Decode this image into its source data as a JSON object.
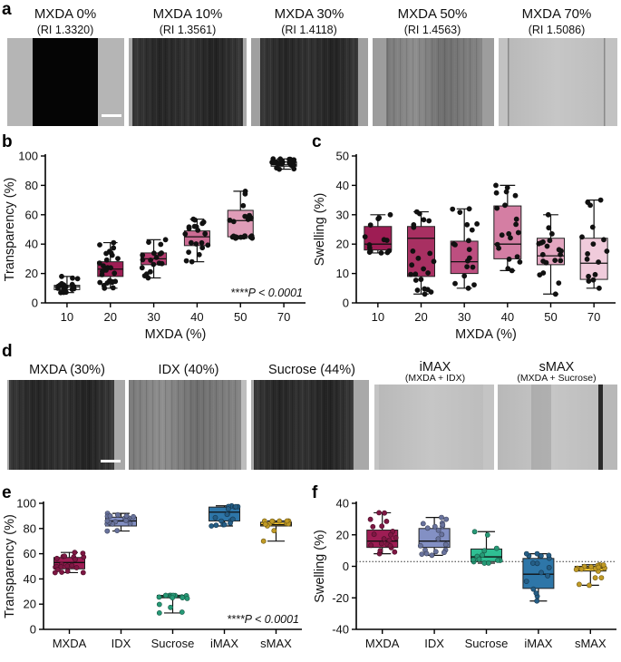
{
  "panel_letters": {
    "a": "a",
    "b": "b",
    "c": "c",
    "d": "d",
    "e": "e",
    "f": "f"
  },
  "row_a": {
    "tiles": [
      {
        "title": "MXDA 0%",
        "subtitle": "(RI 1.3320)"
      },
      {
        "title": "MXDA 10%",
        "subtitle": "(RI 1.3561)"
      },
      {
        "title": "MXDA 30%",
        "subtitle": "(RI 1.4118)"
      },
      {
        "title": "MXDA 50%",
        "subtitle": "(RI 1.4563)"
      },
      {
        "title": "MXDA 70%",
        "subtitle": "(RI 1.5086)"
      }
    ]
  },
  "row_d": {
    "tiles": [
      {
        "title": "MXDA (30%)",
        "subtitle": ""
      },
      {
        "title": "IDX (40%)",
        "subtitle": ""
      },
      {
        "title": "Sucrose (44%)",
        "subtitle": ""
      },
      {
        "title": "iMAX",
        "subtitle": "(MXDA + IDX)"
      },
      {
        "title": "sMAX",
        "subtitle": "(MXDA + Sucrose)"
      }
    ]
  },
  "chart_data": [
    {
      "id": "b",
      "type": "box",
      "xlabel": "MXDA (%)",
      "ylabel": "Transparency (%)",
      "ylim": [
        0,
        100
      ],
      "yticks": [
        0,
        20,
        40,
        60,
        80,
        100
      ],
      "annotation": "****P < 0.0001",
      "groups": [
        {
          "label": "10",
          "color": "#2b2b2b",
          "min": 7,
          "q1": 9,
          "median": 11,
          "q3": 12,
          "max": 18,
          "n": 20
        },
        {
          "label": "20",
          "color": "#9e1d54",
          "min": 10,
          "q1": 18,
          "median": 23,
          "q3": 28,
          "max": 41,
          "n": 26
        },
        {
          "label": "30",
          "color": "#b63c70",
          "min": 17,
          "q1": 26,
          "median": 30,
          "q3": 34,
          "max": 43,
          "n": 18
        },
        {
          "label": "40",
          "color": "#cc6c94",
          "min": 28,
          "q1": 39,
          "median": 45,
          "q3": 49,
          "max": 57,
          "n": 20
        },
        {
          "label": "50",
          "color": "#df9cb8",
          "min": 44,
          "q1": 45,
          "median": 56,
          "q3": 63,
          "max": 76,
          "n": 22
        },
        {
          "label": "70",
          "color": "#2b2b2b",
          "min": 91,
          "q1": 93,
          "median": 94,
          "q3": 96,
          "max": 98,
          "n": 24
        }
      ]
    },
    {
      "id": "c",
      "type": "box",
      "xlabel": "MXDA (%)",
      "ylabel": "Swelling (%)",
      "ylim": [
        0,
        50
      ],
      "yticks": [
        0,
        10,
        20,
        30,
        40,
        50
      ],
      "groups": [
        {
          "label": "10",
          "color": "#9e1d54",
          "min": 17,
          "q1": 18,
          "median": 20,
          "q3": 26,
          "max": 30,
          "n": 14
        },
        {
          "label": "20",
          "color": "#a83062",
          "min": 3,
          "q1": 9,
          "median": 22,
          "q3": 26,
          "max": 31,
          "n": 22
        },
        {
          "label": "30",
          "color": "#bd4f80",
          "min": 5,
          "q1": 10,
          "median": 14,
          "q3": 21,
          "max": 32,
          "n": 18
        },
        {
          "label": "40",
          "color": "#d47ea3",
          "min": 11,
          "q1": 15,
          "median": 20,
          "q3": 33,
          "max": 40,
          "n": 20
        },
        {
          "label": "50",
          "color": "#e3a6c0",
          "min": 3,
          "q1": 13,
          "median": 16,
          "q3": 22,
          "max": 30,
          "n": 20
        },
        {
          "label": "70",
          "color": "#f0cbdb",
          "min": 5,
          "q1": 8,
          "median": 13.5,
          "q3": 22,
          "max": 35,
          "n": 16
        }
      ]
    },
    {
      "id": "e",
      "type": "box",
      "xlabel": "",
      "ylabel": "Transparency (%)",
      "ylim": [
        0,
        100
      ],
      "yticks": [
        0,
        20,
        40,
        60,
        80,
        100
      ],
      "annotation": "****P < 0.0001",
      "groups": [
        {
          "label": "MXDA",
          "color": "#9e1d54",
          "min": 45,
          "q1": 48,
          "median": 53,
          "q3": 57,
          "max": 61,
          "n": 20
        },
        {
          "label": "IDX",
          "color": "#8390c4",
          "min": 78,
          "q1": 82,
          "median": 86,
          "q3": 89,
          "max": 92,
          "n": 18
        },
        {
          "label": "Sucrose",
          "color": "#2fbf93",
          "min": 13,
          "q1": 25,
          "median": 26,
          "q3": 27,
          "max": 27,
          "n": 16
        },
        {
          "label": "iMAX",
          "color": "#2e76a8",
          "min": 82,
          "q1": 86,
          "median": 93,
          "q3": 97,
          "max": 98,
          "n": 18
        },
        {
          "label": "sMAX",
          "color": "#f0c12e",
          "min": 70,
          "q1": 82,
          "median": 83,
          "q3": 85,
          "max": 86,
          "n": 14
        }
      ]
    },
    {
      "id": "f",
      "type": "box",
      "xlabel": "",
      "ylabel": "Swelling (%)",
      "ylim": [
        -40,
        40
      ],
      "yticks": [
        -40,
        -20,
        0,
        20,
        40
      ],
      "reference_line": 3,
      "groups": [
        {
          "label": "MXDA",
          "color": "#9e1d54",
          "min": 8,
          "q1": 12,
          "median": 16,
          "q3": 23,
          "max": 34,
          "n": 20
        },
        {
          "label": "IDX",
          "color": "#8390c4",
          "min": 7,
          "q1": 12,
          "median": 16,
          "q3": 24,
          "max": 31,
          "n": 20
        },
        {
          "label": "Sucrose",
          "color": "#2fbf93",
          "min": 2,
          "q1": 3,
          "median": 6,
          "q3": 11,
          "max": 22,
          "n": 14
        },
        {
          "label": "iMAX",
          "color": "#2e76a8",
          "min": -22,
          "q1": -14,
          "median": -5,
          "q3": 5,
          "max": 8,
          "n": 16
        },
        {
          "label": "sMAX",
          "color": "#f0c12e",
          "min": -12,
          "q1": -3,
          "median": -1,
          "q3": 0,
          "max": 1,
          "n": 16
        }
      ]
    }
  ]
}
